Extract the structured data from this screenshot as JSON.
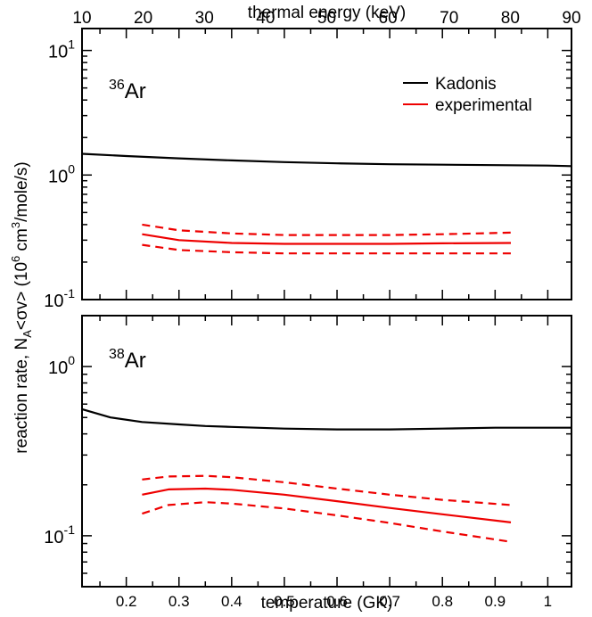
{
  "chart_data": [
    {
      "type": "line",
      "panel": "top",
      "annotation": {
        "base": "Ar",
        "mass": "36"
      },
      "top_axis": {
        "label": "thermal energy (keV)",
        "range": [
          10,
          90
        ],
        "ticks": [
          {
            "value": 10,
            "label": "10"
          },
          {
            "value": 20,
            "label": "20"
          },
          {
            "value": 30,
            "label": "30"
          },
          {
            "value": 40,
            "label": "40"
          },
          {
            "value": 50,
            "label": "50"
          },
          {
            "value": 60,
            "label": "60"
          },
          {
            "value": 70,
            "label": "70"
          },
          {
            "value": 80,
            "label": "80"
          },
          {
            "value": 90,
            "label": "90"
          }
        ]
      },
      "x_range": [
        0.116,
        1.045
      ],
      "y_scale": "log",
      "ylim": [
        0.1,
        15
      ],
      "y_ticks": [
        {
          "value": 0.1,
          "base": "10",
          "exp": "-1"
        },
        {
          "value": 1,
          "base": "10",
          "exp": "0"
        },
        {
          "value": 10,
          "base": "10",
          "exp": "1"
        }
      ],
      "legend": {
        "position": "top-right",
        "entries": [
          {
            "label": "Kadonis",
            "color": "#000000"
          },
          {
            "label": "experimental",
            "color": "#ee0000"
          }
        ]
      },
      "series": [
        {
          "name": "Kadonis",
          "color": "#000000",
          "style": "solid",
          "x": [
            0.116,
            0.2,
            0.3,
            0.4,
            0.5,
            0.6,
            0.7,
            0.8,
            0.9,
            1.0,
            1.045
          ],
          "y": [
            1.48,
            1.42,
            1.36,
            1.31,
            1.27,
            1.24,
            1.22,
            1.21,
            1.2,
            1.19,
            1.18
          ]
        },
        {
          "name": "experimental",
          "color": "#ee0000",
          "style": "solid",
          "x": [
            0.23,
            0.3,
            0.4,
            0.5,
            0.6,
            0.7,
            0.8,
            0.93
          ],
          "y": [
            0.335,
            0.3,
            0.285,
            0.28,
            0.28,
            0.28,
            0.283,
            0.285
          ]
        },
        {
          "name": "experimental upper",
          "color": "#ee0000",
          "style": "dashed",
          "x": [
            0.23,
            0.3,
            0.4,
            0.5,
            0.6,
            0.7,
            0.8,
            0.93
          ],
          "y": [
            0.4,
            0.36,
            0.34,
            0.33,
            0.33,
            0.33,
            0.335,
            0.345
          ]
        },
        {
          "name": "experimental lower",
          "color": "#ee0000",
          "style": "dashed",
          "x": [
            0.23,
            0.3,
            0.4,
            0.5,
            0.6,
            0.7,
            0.8,
            0.93
          ],
          "y": [
            0.275,
            0.25,
            0.24,
            0.235,
            0.235,
            0.235,
            0.235,
            0.235
          ]
        }
      ]
    },
    {
      "type": "line",
      "panel": "bottom",
      "annotation": {
        "base": "Ar",
        "mass": "38"
      },
      "xlabel": "temperature (GK)",
      "xlim": [
        0.116,
        1.045
      ],
      "x_ticks": [
        {
          "value": 0.2,
          "label": "0.2"
        },
        {
          "value": 0.3,
          "label": "0.3"
        },
        {
          "value": 0.4,
          "label": "0.4"
        },
        {
          "value": 0.5,
          "label": "0.5"
        },
        {
          "value": 0.6,
          "label": "0.6"
        },
        {
          "value": 0.7,
          "label": "0.7"
        },
        {
          "value": 0.8,
          "label": "0.8"
        },
        {
          "value": 0.9,
          "label": "0.9"
        },
        {
          "value": 1.0,
          "label": "1"
        }
      ],
      "x_minor_step": 0.05,
      "y_scale": "log",
      "ylim": [
        0.05,
        2
      ],
      "y_ticks": [
        {
          "value": 0.1,
          "base": "10",
          "exp": "-1"
        },
        {
          "value": 1,
          "base": "10",
          "exp": "0"
        }
      ],
      "series": [
        {
          "name": "Kadonis",
          "color": "#000000",
          "style": "solid",
          "x": [
            0.116,
            0.17,
            0.23,
            0.3,
            0.35,
            0.4,
            0.5,
            0.6,
            0.7,
            0.8,
            0.9,
            1.0,
            1.045
          ],
          "y": [
            0.56,
            0.5,
            0.47,
            0.455,
            0.445,
            0.44,
            0.43,
            0.425,
            0.425,
            0.43,
            0.435,
            0.435,
            0.435
          ]
        },
        {
          "name": "experimental",
          "color": "#ee0000",
          "style": "solid",
          "x": [
            0.23,
            0.28,
            0.35,
            0.4,
            0.5,
            0.6,
            0.7,
            0.8,
            0.93
          ],
          "y": [
            0.175,
            0.188,
            0.19,
            0.187,
            0.175,
            0.16,
            0.146,
            0.134,
            0.12
          ]
        },
        {
          "name": "experimental upper",
          "color": "#ee0000",
          "style": "dashed",
          "x": [
            0.23,
            0.28,
            0.35,
            0.4,
            0.5,
            0.6,
            0.7,
            0.8,
            0.93
          ],
          "y": [
            0.215,
            0.224,
            0.226,
            0.222,
            0.207,
            0.19,
            0.175,
            0.163,
            0.152
          ]
        },
        {
          "name": "experimental lower",
          "color": "#ee0000",
          "style": "dashed",
          "x": [
            0.23,
            0.28,
            0.35,
            0.4,
            0.5,
            0.6,
            0.7,
            0.8,
            0.93
          ],
          "y": [
            0.135,
            0.152,
            0.158,
            0.155,
            0.145,
            0.132,
            0.119,
            0.106,
            0.092
          ]
        }
      ]
    }
  ],
  "y_axis_label": {
    "prefix": "reaction rate, N",
    "sub": "A",
    "mid": "<σv> (10",
    "sup1": "6",
    "mid2": " cm",
    "sup2": "3",
    "suffix": "/mole/s)"
  }
}
